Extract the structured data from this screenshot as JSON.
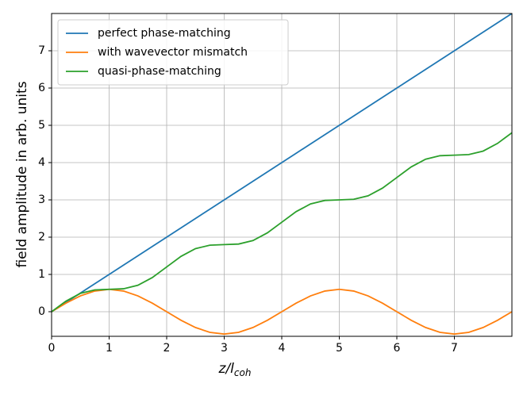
{
  "chart_data": {
    "type": "line",
    "xlabel": "z/l",
    "xlabel_subscript": "coh",
    "ylabel": "field amplitude in arb. units",
    "x": [
      0,
      0.25,
      0.5,
      0.75,
      1,
      1.25,
      1.5,
      1.75,
      2,
      2.25,
      2.5,
      2.75,
      3,
      3.25,
      3.5,
      3.75,
      4,
      4.25,
      4.5,
      4.75,
      5,
      5.25,
      5.5,
      5.75,
      6,
      6.25,
      6.5,
      6.75,
      7,
      7.25,
      7.5,
      7.75,
      8
    ],
    "series": [
      {
        "name": "perfect phase-matching",
        "color": "#1f77b4",
        "values": [
          0,
          0.25,
          0.5,
          0.75,
          1,
          1.25,
          1.5,
          1.75,
          2,
          2.25,
          2.5,
          2.75,
          3,
          3.25,
          3.5,
          3.75,
          4,
          4.25,
          4.5,
          4.75,
          5,
          5.25,
          5.5,
          5.75,
          6,
          6.25,
          6.5,
          6.75,
          7,
          7.25,
          7.5,
          7.75,
          8
        ]
      },
      {
        "name": "with wavevector mismatch",
        "color": "#ff7f0e",
        "values": [
          0,
          0.23,
          0.424,
          0.554,
          0.6,
          0.554,
          0.424,
          0.23,
          0,
          -0.23,
          -0.424,
          -0.554,
          -0.6,
          -0.554,
          -0.424,
          -0.23,
          0,
          0.23,
          0.424,
          0.554,
          0.6,
          0.554,
          0.424,
          0.23,
          0,
          -0.23,
          -0.424,
          -0.554,
          -0.6,
          -0.554,
          -0.424,
          -0.23,
          0
        ]
      },
      {
        "name": "quasi-phase-matching",
        "color": "#2ca02c",
        "values": [
          0,
          0.285,
          0.491,
          0.585,
          0.6,
          0.615,
          0.709,
          0.915,
          1.2,
          1.485,
          1.691,
          1.785,
          1.8,
          1.815,
          1.909,
          2.115,
          2.4,
          2.685,
          2.891,
          2.985,
          3.0,
          3.015,
          3.109,
          3.315,
          3.6,
          3.885,
          4.091,
          4.185,
          4.2,
          4.215,
          4.309,
          4.515,
          4.8
        ]
      }
    ],
    "xlim": [
      0,
      8
    ],
    "xticks": [
      0,
      1,
      2,
      3,
      4,
      5,
      6,
      7
    ],
    "ylim": [
      -0.66,
      8
    ],
    "yticks": [
      0,
      1,
      2,
      3,
      4,
      5,
      6,
      7
    ],
    "grid": true,
    "legend": "upper left"
  }
}
